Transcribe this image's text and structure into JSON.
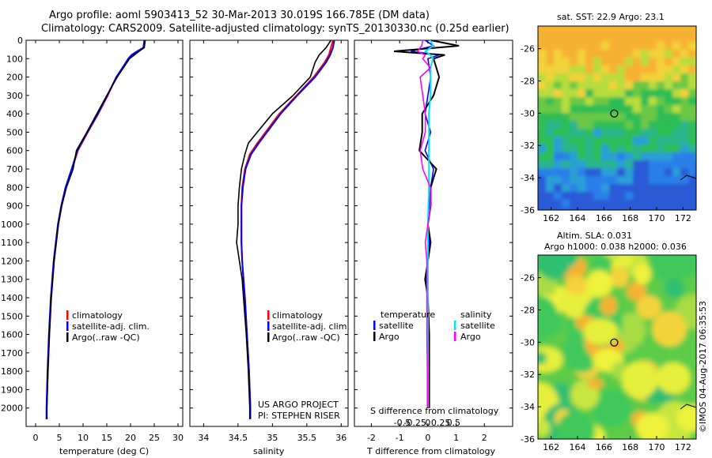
{
  "header": {
    "line1": "Argo profile: aoml 5903413_52 30-Mar-2013 30.019S 166.785E (DM data)",
    "line2": "Climatology: CARS2009. Satellite-adjusted climatology: synTS_20130330.nc (0.25d earlier)"
  },
  "colors": {
    "climatology": "#ff0000",
    "satellite": "#0000ff",
    "argo": "#000000",
    "salinity_sat": "#00e5ee",
    "salinity_argo": "#ff00ff"
  },
  "chart_data": [
    {
      "type": "line",
      "title": "",
      "xlabel": "temperature (deg C)",
      "ylabel": "",
      "xlim": [
        -2,
        31
      ],
      "ylim": [
        2100,
        0
      ],
      "xticks": [
        0,
        5,
        10,
        15,
        20,
        25,
        30
      ],
      "yticks": [
        0,
        100,
        200,
        300,
        400,
        500,
        600,
        700,
        800,
        900,
        1000,
        1100,
        1200,
        1300,
        1400,
        1500,
        1600,
        1700,
        1800,
        1900,
        2000
      ],
      "depth": [
        0,
        40,
        60,
        80,
        100,
        150,
        200,
        300,
        400,
        500,
        600,
        700,
        800,
        900,
        1000,
        1200,
        1400,
        1600,
        1800,
        2000,
        2060
      ],
      "series": [
        {
          "name": "climatology",
          "values": [
            23.0,
            22.8,
            21.6,
            20.5,
            19.7,
            18.3,
            17.0,
            15.2,
            13.2,
            11.0,
            8.9,
            7.7,
            6.4,
            5.5,
            4.8,
            3.9,
            3.3,
            2.9,
            2.6,
            2.3,
            2.3
          ]
        },
        {
          "name": "satellite-adj. clim.",
          "values": [
            22.9,
            22.7,
            21.4,
            20.2,
            19.5,
            18.3,
            17.0,
            15.1,
            13.1,
            10.9,
            8.8,
            7.6,
            6.3,
            5.4,
            4.7,
            3.8,
            3.2,
            2.8,
            2.5,
            2.3,
            2.3
          ]
        },
        {
          "name": "Argo(..raw -QC)",
          "values": [
            23.1,
            22.9,
            21.8,
            20.8,
            19.8,
            18.5,
            17.2,
            15.0,
            12.9,
            10.8,
            8.6,
            7.9,
            6.5,
            5.5,
            4.8,
            3.9,
            3.3,
            2.9,
            2.6,
            2.4,
            2.4
          ]
        }
      ],
      "legend": [
        "climatology",
        "satellite-adj. clim.",
        "Argo(..raw -QC)"
      ]
    },
    {
      "type": "line",
      "title": "",
      "xlabel": "salinity",
      "xlim": [
        33.8,
        36.1
      ],
      "ylim": [
        2100,
        0
      ],
      "xticks": [
        34,
        34.5,
        35,
        35.5,
        36
      ],
      "xticklabels": [
        "34",
        "34.5",
        "35",
        "35.5",
        "36"
      ],
      "depth": [
        0,
        40,
        80,
        120,
        200,
        300,
        400,
        500,
        560,
        620,
        700,
        800,
        900,
        1000,
        1100,
        1200,
        1300,
        1400,
        1600,
        1800,
        2000,
        2060
      ],
      "series": [
        {
          "name": "climatology",
          "values": [
            35.88,
            35.85,
            35.82,
            35.76,
            35.6,
            35.35,
            35.1,
            34.9,
            34.78,
            34.67,
            34.6,
            34.56,
            34.55,
            34.55,
            34.55,
            34.56,
            34.58,
            34.6,
            34.63,
            34.66,
            34.68,
            34.68
          ]
        },
        {
          "name": "satellite-adj. clim.",
          "values": [
            35.9,
            35.88,
            35.84,
            35.78,
            35.62,
            35.36,
            35.12,
            34.92,
            34.8,
            34.69,
            34.61,
            34.57,
            34.55,
            34.55,
            34.55,
            34.56,
            34.58,
            34.6,
            34.63,
            34.66,
            34.68,
            34.68
          ]
        },
        {
          "name": "Argo(..raw -QC)",
          "values": [
            35.85,
            35.78,
            35.68,
            35.62,
            35.55,
            35.3,
            35.0,
            34.78,
            34.65,
            34.6,
            34.55,
            34.52,
            34.5,
            34.5,
            34.48,
            34.52,
            34.56,
            34.58,
            34.62,
            34.65,
            34.67,
            34.67
          ]
        }
      ],
      "legend": [
        "climatology",
        "satellite-adj. clim.",
        "Argo(..raw -QC)"
      ],
      "annotations": [
        "US ARGO PROJECT",
        "PI: STEPHEN RISER"
      ]
    },
    {
      "type": "line",
      "title": "",
      "xlabel": "T difference from climatology",
      "x2label": "S difference from climatology",
      "xlim": [
        -2.6,
        3.0
      ],
      "ylim": [
        2100,
        0
      ],
      "xticks": [
        -2,
        -1,
        0,
        1,
        2
      ],
      "x2ticks": [
        -0.5,
        -0.25,
        0,
        0.25,
        0.5
      ],
      "x2ticklabels": [
        "-0.5",
        "-0.25",
        "0",
        "0.25",
        "0.5"
      ],
      "depth": [
        0,
        30,
        60,
        80,
        100,
        150,
        200,
        300,
        400,
        500,
        600,
        700,
        800,
        900,
        1000,
        1100,
        1200,
        1300,
        1400,
        1600,
        1800,
        2000
      ],
      "series": [
        {
          "name": "temperature satellite",
          "values": [
            -0.1,
            0.2,
            -0.6,
            0.4,
            0.0,
            0.05,
            0.1,
            0.0,
            -0.1,
            0.1,
            -0.1,
            0.2,
            0.1,
            0.05,
            0.0,
            0.05,
            0.0,
            -0.05,
            0.0,
            0.0,
            0.0,
            0.0
          ]
        },
        {
          "name": "temperature Argo",
          "values": [
            0.1,
            1.1,
            -1.2,
            0.6,
            0.2,
            0.3,
            0.4,
            0.2,
            -0.2,
            -0.2,
            -0.3,
            0.3,
            0.1,
            0.1,
            0.0,
            0.1,
            0.0,
            -0.1,
            0.0,
            0.05,
            0.05,
            0.05
          ]
        },
        {
          "name": "salinity satellite",
          "values": [
            0.05,
            0.1,
            -0.05,
            0.05,
            0.1,
            0.05,
            0.05,
            0.05,
            0.02,
            0.02,
            0.02,
            0.02,
            0.02,
            0.01,
            0.0,
            0.0,
            0.0,
            0.0,
            0.0,
            0.0,
            0.0,
            0.0
          ]
        },
        {
          "name": "salinity Argo",
          "values": [
            -0.1,
            -0.12,
            -0.2,
            -0.05,
            -0.1,
            0.05,
            -0.15,
            -0.1,
            -0.05,
            -0.05,
            -0.15,
            -0.1,
            0.05,
            0.05,
            0.0,
            -0.05,
            -0.02,
            -0.02,
            -0.02,
            -0.02,
            -0.01,
            -0.01
          ]
        }
      ],
      "legend": {
        "temperature_title": "temperature",
        "salinity_title": "salinity",
        "items": [
          "satellite",
          "Argo",
          "satellite",
          "Argo"
        ]
      }
    },
    {
      "type": "heatmap",
      "title": "sat. SST: 22.9  Argo: 23.1",
      "xticks": [
        162,
        164,
        166,
        168,
        170,
        172
      ],
      "yticks": [
        -26,
        -28,
        -30,
        -32,
        -34,
        -36
      ],
      "xlim": [
        161,
        173
      ],
      "ylim": [
        -36,
        -24.6
      ],
      "marker": {
        "lon": 166.785,
        "lat": -30.019
      }
    },
    {
      "type": "heatmap",
      "title_lines": [
        "Altim. SLA: 0.031",
        "Argo h1000: 0.038 h2000: 0.036"
      ],
      "xticks": [
        162,
        164,
        166,
        168,
        170,
        172
      ],
      "yticks": [
        -26,
        -28,
        -30,
        -32,
        -34,
        -36
      ],
      "xlim": [
        161,
        173
      ],
      "ylim": [
        -36,
        -24.6
      ],
      "marker": {
        "lon": 166.785,
        "lat": -30.019
      }
    }
  ],
  "credit": "©IMOS 04-Aug-2017 06:35:53"
}
